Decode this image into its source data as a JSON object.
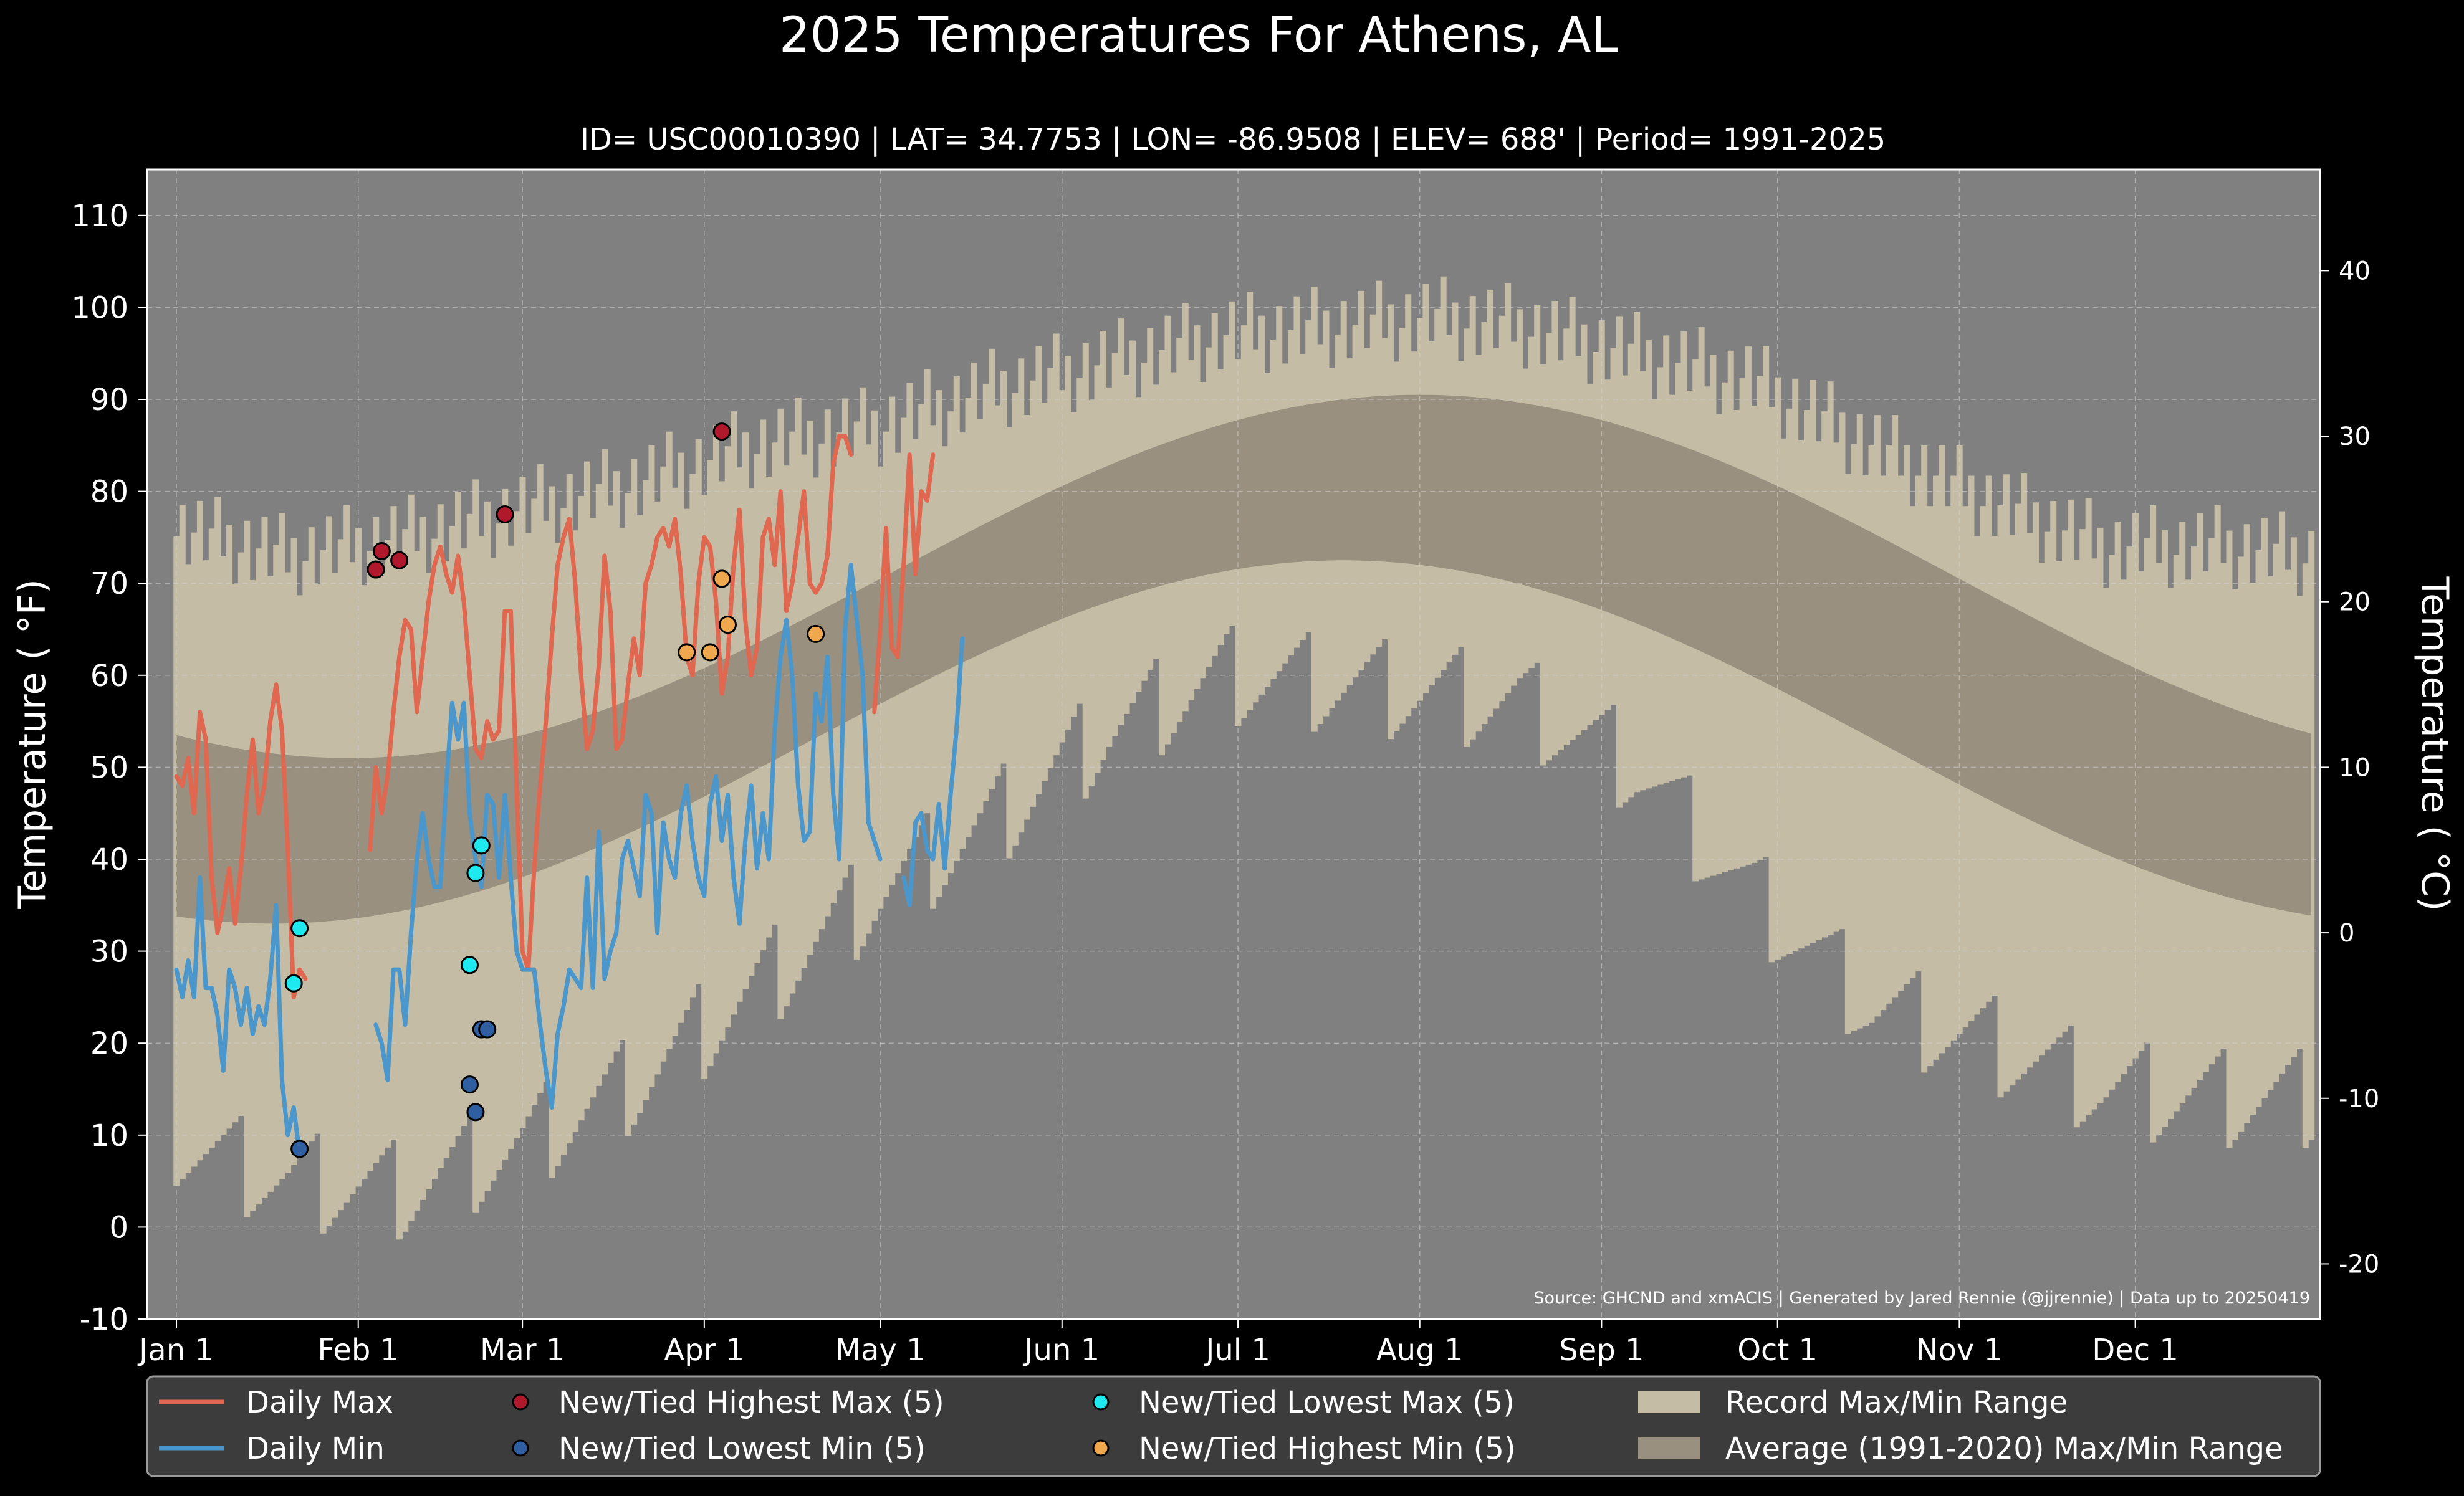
{
  "chart_data": {
    "type": "line",
    "title": "2025 Temperatures For Athens, AL",
    "subtitle": "ID= USC00010390 | LAT= 34.7753 | LON= -86.9508 | ELEV= 688' | Period= 1991-2025",
    "ylabel": "Temperature ( °F)",
    "ylabel_right": "Temperature ( °C)",
    "xlabel": "",
    "ylim": [
      -10,
      115
    ],
    "ylim_right_c": [
      -23.33,
      46.11
    ],
    "grid": true,
    "legend_position": "bottom",
    "source_note": "Source: GHCND and xmACIS | Generated by Jared Rennie (@jjrennie) | Data up to 20250419",
    "x_ticks": [
      {
        "day": 1,
        "label": "Jan 1"
      },
      {
        "day": 32,
        "label": "Feb 1"
      },
      {
        "day": 60,
        "label": "Mar 1"
      },
      {
        "day": 91,
        "label": "Apr 1"
      },
      {
        "day": 121,
        "label": "May 1"
      },
      {
        "day": 152,
        "label": "Jun 1"
      },
      {
        "day": 182,
        "label": "Jul 1"
      },
      {
        "day": 213,
        "label": "Aug 1"
      },
      {
        "day": 244,
        "label": "Sep 1"
      },
      {
        "day": 274,
        "label": "Oct 1"
      },
      {
        "day": 305,
        "label": "Nov 1"
      },
      {
        "day": 335,
        "label": "Dec 1"
      }
    ],
    "y_ticks_f": [
      -10,
      0,
      10,
      20,
      30,
      40,
      50,
      60,
      70,
      80,
      90,
      100,
      110
    ],
    "y_ticks_c": [
      -20,
      -10,
      0,
      10,
      20,
      30,
      40
    ],
    "record_range_anchors": {
      "day": [
        1,
        20,
        40,
        60,
        80,
        100,
        120,
        140,
        160,
        180,
        200,
        215,
        230,
        250,
        270,
        290,
        310,
        330,
        350,
        365
      ],
      "max": [
        76,
        73,
        75,
        78,
        81,
        85,
        87,
        91,
        94,
        97,
        98,
        99,
        98,
        95,
        92,
        85,
        79,
        74,
        74,
        73
      ],
      "min": [
        9,
        5,
        4,
        9,
        16,
        26,
        36,
        44,
        54,
        60,
        59,
        58,
        57,
        50,
        36,
        24,
        20,
        15,
        14,
        14
      ]
    },
    "normal_range": {
      "high_min": 51,
      "high_max": 90.5,
      "high_peak_day": 213,
      "low_min": 33,
      "low_max": 72.5,
      "low_peak_day": 200
    },
    "series": [
      {
        "name": "Daily Max",
        "color": "#e06750",
        "start_day": 1,
        "values": [
          49,
          48,
          51,
          45,
          56,
          53,
          38,
          32,
          35,
          39,
          33,
          39,
          47,
          53,
          45,
          48,
          55,
          59,
          54,
          41,
          25,
          28,
          27,
          null,
          null,
          null,
          null,
          null,
          null,
          null,
          null,
          null,
          null,
          41,
          50,
          45,
          49,
          56,
          62,
          66,
          65,
          56,
          62,
          68,
          72,
          74,
          71,
          69,
          73,
          68,
          60,
          52,
          51,
          55,
          53,
          54,
          67,
          67,
          48,
          30,
          28,
          39,
          48,
          55,
          64,
          72,
          75,
          77,
          70,
          60,
          52,
          54,
          61,
          73,
          67,
          52,
          53,
          59,
          64,
          60,
          70,
          72,
          75,
          76,
          74,
          77,
          71,
          62,
          60,
          70,
          75,
          74,
          68,
          58,
          62,
          72,
          78,
          66,
          60,
          63,
          75,
          77,
          72,
          80,
          67,
          70,
          75,
          80,
          70,
          69,
          70,
          73,
          83,
          86,
          86,
          84,
          null,
          null,
          null,
          56,
          65,
          76,
          63,
          62,
          72,
          84,
          71,
          80,
          79,
          84
        ]
      },
      {
        "name": "Daily Min",
        "color": "#4b97cb",
        "start_day": 1,
        "values": [
          28,
          25,
          29,
          25,
          38,
          26,
          26,
          23,
          17,
          28,
          26,
          22,
          26,
          21,
          24,
          22,
          27,
          35,
          16,
          10,
          13,
          8,
          null,
          null,
          null,
          null,
          null,
          null,
          null,
          null,
          null,
          null,
          null,
          null,
          22,
          20,
          16,
          28,
          28,
          22,
          32,
          40,
          45,
          40,
          37,
          37,
          48,
          57,
          53,
          57,
          45,
          40,
          37,
          47,
          46,
          38,
          47,
          38,
          30,
          28,
          28,
          28,
          22,
          17,
          13,
          21,
          24,
          28,
          27,
          26,
          38,
          26,
          43,
          27,
          30,
          32,
          40,
          42,
          39,
          36,
          47,
          45,
          32,
          44,
          40,
          38,
          45,
          48,
          42,
          38,
          36,
          46,
          49,
          42,
          47,
          38,
          33,
          42,
          48,
          39,
          45,
          40,
          54,
          62,
          66,
          60,
          48,
          42,
          43,
          58,
          55,
          62,
          47,
          40,
          65,
          72,
          66,
          60,
          44,
          42,
          40,
          null,
          null,
          null,
          38,
          35,
          44,
          45,
          41,
          40,
          46,
          39,
          47,
          54,
          64
        ]
      }
    ],
    "markers": [
      {
        "name": "New/Tied Highest Max (5)",
        "color": "#b0182b",
        "points": [
          [
            35,
            71.5
          ],
          [
            36,
            73.5
          ],
          [
            39,
            72.5
          ],
          [
            57,
            77.5
          ],
          [
            94,
            86.5
          ]
        ]
      },
      {
        "name": "New/Tied Lowest Min (5)",
        "color": "#2f5fa0",
        "points": [
          [
            22,
            8.5
          ],
          [
            51,
            15.5
          ],
          [
            52,
            12.5
          ],
          [
            53,
            21.5
          ],
          [
            54,
            21.5
          ]
        ]
      },
      {
        "name": "New/Tied Lowest Max (5)",
        "color": "#1ee9ef",
        "points": [
          [
            21,
            26.5
          ],
          [
            22,
            32.5
          ],
          [
            51,
            28.5
          ],
          [
            52,
            38.5
          ],
          [
            53,
            41.5
          ]
        ]
      },
      {
        "name": "New/Tied Highest Min (5)",
        "color": "#f0a84f",
        "points": [
          [
            88,
            62.5
          ],
          [
            92,
            62.5
          ],
          [
            94,
            70.5
          ],
          [
            95,
            65.5
          ],
          [
            110,
            64.5
          ]
        ]
      }
    ],
    "legend": [
      {
        "label": "Daily Max",
        "kind": "line",
        "color": "#e06750"
      },
      {
        "label": "Daily Min",
        "kind": "line",
        "color": "#4b97cb"
      },
      {
        "label": "New/Tied Highest Max (5)",
        "kind": "marker",
        "color": "#b0182b"
      },
      {
        "label": "New/Tied Lowest Min (5)",
        "kind": "marker",
        "color": "#2f5fa0"
      },
      {
        "label": "New/Tied Lowest Max (5)",
        "kind": "marker",
        "color": "#1ee9ef"
      },
      {
        "label": "New/Tied Highest Min (5)",
        "kind": "marker",
        "color": "#f0a84f"
      },
      {
        "label": "Record Max/Min Range",
        "kind": "patch",
        "color": "#c4bca4"
      },
      {
        "label": "Average (1991-2020) Max/Min Range",
        "kind": "patch",
        "color": "#99907f"
      }
    ]
  }
}
